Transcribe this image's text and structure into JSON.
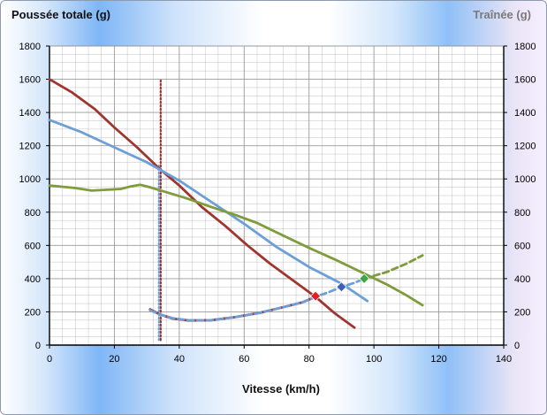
{
  "chart_data": {
    "type": "line",
    "title_left": "Poussée totale (g)",
    "title_right": "Traînée (g)",
    "xlabel": "Vitesse (km/h)",
    "xlim": [
      0,
      140
    ],
    "ylim": [
      0,
      1800
    ],
    "y2lim": [
      0,
      1800
    ],
    "xticks": [
      "0",
      "20",
      "40",
      "60",
      "80",
      "100",
      "120",
      "140"
    ],
    "yticks": [
      "0",
      "200",
      "400",
      "600",
      "800",
      "1000",
      "1200",
      "1400",
      "1600",
      "1800"
    ],
    "y2ticks": [
      "0",
      "200",
      "400",
      "600",
      "800",
      "1000",
      "1200",
      "1400",
      "1600",
      "1800"
    ],
    "grid": true,
    "colors": {
      "red": "#a0352f",
      "blue": "#6c9fd8",
      "green": "#7f9c3c",
      "vline_red": "#a0352f",
      "vline_blue": "#6c9fd8",
      "plot_bg": "#ffffff",
      "grid": "#8f8f8f"
    },
    "series": [
      {
        "key": "red",
        "style": "solid",
        "values": [
          [
            0,
            1600
          ],
          [
            7,
            1520
          ],
          [
            14,
            1420
          ],
          [
            20,
            1310
          ],
          [
            27,
            1190
          ],
          [
            34,
            1060
          ],
          [
            40,
            960
          ],
          [
            47,
            830
          ],
          [
            54,
            720
          ],
          [
            61,
            600
          ],
          [
            68,
            490
          ],
          [
            75,
            390
          ],
          [
            82,
            290
          ],
          [
            88,
            190
          ],
          [
            94,
            105
          ]
        ]
      },
      {
        "key": "blue",
        "style": "solid",
        "values": [
          [
            0,
            1355
          ],
          [
            10,
            1280
          ],
          [
            20,
            1190
          ],
          [
            30,
            1100
          ],
          [
            40,
            990
          ],
          [
            50,
            860
          ],
          [
            60,
            730
          ],
          [
            70,
            590
          ],
          [
            80,
            470
          ],
          [
            90,
            370
          ],
          [
            98,
            265
          ]
        ]
      },
      {
        "key": "green",
        "style": "solid",
        "values": [
          [
            0,
            960
          ],
          [
            8,
            945
          ],
          [
            13,
            930
          ],
          [
            18,
            935
          ],
          [
            22,
            940
          ],
          [
            25,
            955
          ],
          [
            28,
            965
          ],
          [
            31,
            950
          ],
          [
            36,
            920
          ],
          [
            42,
            885
          ],
          [
            50,
            830
          ],
          [
            57,
            785
          ],
          [
            64,
            735
          ],
          [
            72,
            660
          ],
          [
            80,
            585
          ],
          [
            88,
            515
          ],
          [
            96,
            440
          ],
          [
            104,
            365
          ],
          [
            110,
            300
          ],
          [
            115,
            240
          ]
        ]
      },
      {
        "key": "red",
        "style": "solid",
        "values": [
          [
            31,
            215
          ],
          [
            34,
            185
          ],
          [
            38,
            160
          ],
          [
            43,
            148
          ],
          [
            50,
            150
          ],
          [
            57,
            168
          ],
          [
            65,
            195
          ],
          [
            72,
            228
          ],
          [
            78,
            258
          ],
          [
            82,
            290
          ]
        ]
      },
      {
        "key": "blue",
        "style": "dashed",
        "values": [
          [
            31,
            210
          ],
          [
            34,
            185
          ],
          [
            38,
            162
          ],
          [
            43,
            149
          ],
          [
            50,
            150
          ],
          [
            57,
            168
          ],
          [
            65,
            195
          ],
          [
            72,
            228
          ],
          [
            78,
            258
          ],
          [
            82,
            290
          ],
          [
            86,
            318
          ],
          [
            90,
            350
          ],
          [
            94,
            375
          ],
          [
            97,
            400
          ]
        ]
      },
      {
        "key": "green",
        "style": "dashed",
        "values": [
          [
            97,
            400
          ],
          [
            104,
            440
          ],
          [
            110,
            490
          ],
          [
            115,
            540
          ]
        ]
      }
    ],
    "markers": [
      {
        "x": 82,
        "y": 295,
        "color": "#e02020"
      },
      {
        "x": 90,
        "y": 350,
        "color": "#3d5fb5"
      },
      {
        "x": 97,
        "y": 400,
        "color": "#3aa845"
      }
    ],
    "vlines": [
      {
        "x": 34,
        "y0": 30,
        "y1": 1600,
        "key": "vline_red"
      },
      {
        "x": 34,
        "y0": 30,
        "y1": 1080,
        "key": "vline_blue"
      }
    ]
  }
}
